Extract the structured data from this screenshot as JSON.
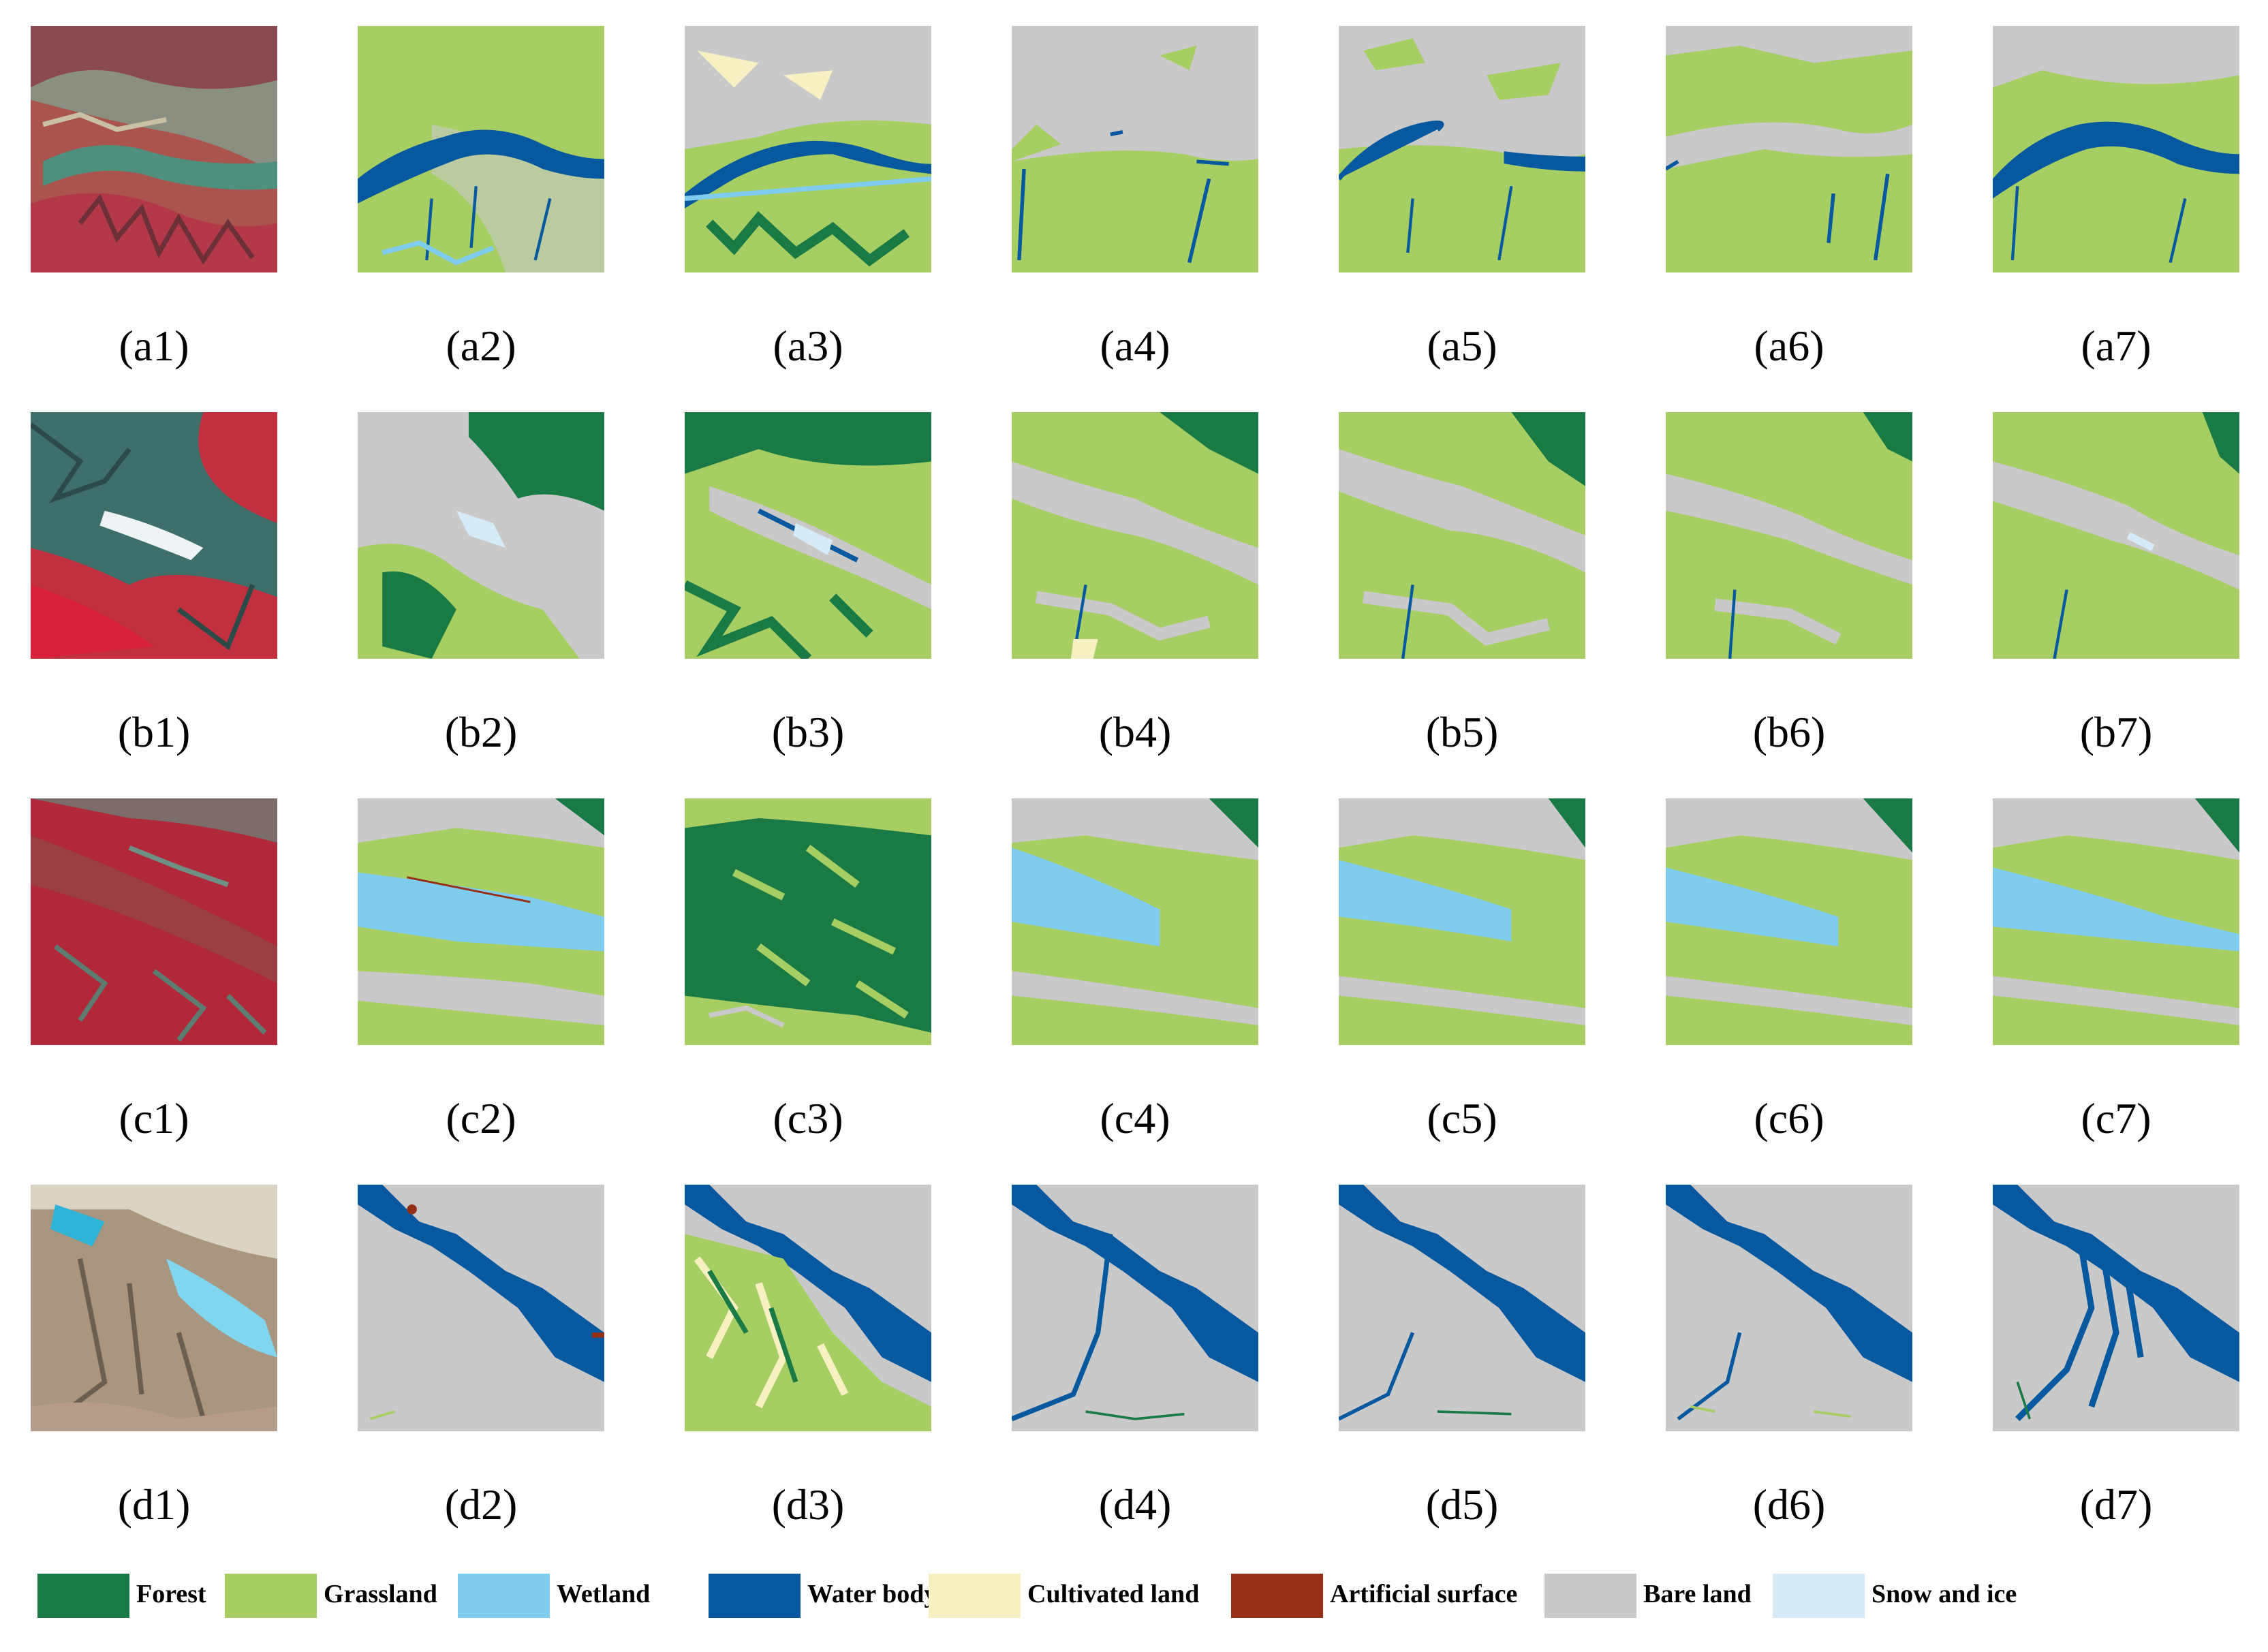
{
  "legend": {
    "items": [
      {
        "label": "Forest",
        "color": "#197a45"
      },
      {
        "label": "Grassland",
        "color": "#a6ce62"
      },
      {
        "label": "Wetland",
        "color": "#80ccee"
      },
      {
        "label": "Water body",
        "color": "#06589f"
      },
      {
        "label": "Cultivated land",
        "color": "#f6f0c3"
      },
      {
        "label": "Artificial surface",
        "color": "#952f16"
      },
      {
        "label": "Bare land",
        "color": "#c9c9c9"
      },
      {
        "label": "Snow and ice",
        "color": "#d7eaf8"
      }
    ]
  },
  "rows": [
    {
      "id": "a",
      "panels": [
        {
          "label": "(a1)",
          "kind": "satellite"
        },
        {
          "label": "(a2)",
          "kind": "classification"
        },
        {
          "label": "(a3)",
          "kind": "classification"
        },
        {
          "label": "(a4)",
          "kind": "classification"
        },
        {
          "label": "(a5)",
          "kind": "classification"
        },
        {
          "label": "(a6)",
          "kind": "classification"
        },
        {
          "label": "(a7)",
          "kind": "classification"
        }
      ]
    },
    {
      "id": "b",
      "panels": [
        {
          "label": "(b1)",
          "kind": "satellite"
        },
        {
          "label": "(b2)",
          "kind": "classification"
        },
        {
          "label": "(b3)",
          "kind": "classification"
        },
        {
          "label": "(b4)",
          "kind": "classification"
        },
        {
          "label": "(b5)",
          "kind": "classification"
        },
        {
          "label": "(b6)",
          "kind": "classification"
        },
        {
          "label": "(b7)",
          "kind": "classification"
        }
      ]
    },
    {
      "id": "c",
      "panels": [
        {
          "label": "(c1)",
          "kind": "satellite"
        },
        {
          "label": "(c2)",
          "kind": "classification"
        },
        {
          "label": "(c3)",
          "kind": "classification"
        },
        {
          "label": "(c4)",
          "kind": "classification"
        },
        {
          "label": "(c5)",
          "kind": "classification"
        },
        {
          "label": "(c6)",
          "kind": "classification"
        },
        {
          "label": "(c7)",
          "kind": "classification"
        }
      ]
    },
    {
      "id": "d",
      "panels": [
        {
          "label": "(d1)",
          "kind": "satellite"
        },
        {
          "label": "(d2)",
          "kind": "classification"
        },
        {
          "label": "(d3)",
          "kind": "classification"
        },
        {
          "label": "(d4)",
          "kind": "classification"
        },
        {
          "label": "(d5)",
          "kind": "classification"
        },
        {
          "label": "(d6)",
          "kind": "classification"
        },
        {
          "label": "(d7)",
          "kind": "classification"
        }
      ]
    }
  ]
}
